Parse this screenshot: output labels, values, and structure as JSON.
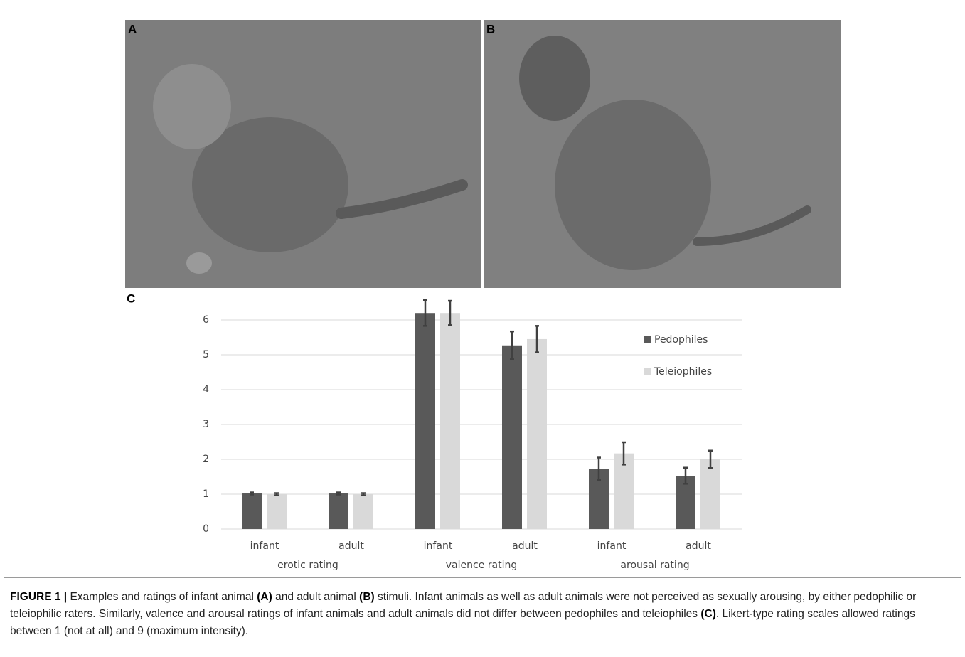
{
  "panels": [
    "A",
    "B",
    "C"
  ],
  "chart_data": {
    "type": "bar",
    "categories": [
      "infant",
      "adult",
      "infant",
      "adult",
      "infant",
      "adult"
    ],
    "groups": [
      "erotic rating",
      "valence rating",
      "arousal rating"
    ],
    "series": [
      {
        "name": "Pedophiles",
        "color": "#595959",
        "values": [
          1.02,
          1.02,
          6.2,
          5.27,
          1.73,
          1.53
        ],
        "errors": [
          0.03,
          0.03,
          0.37,
          0.4,
          0.32,
          0.23
        ]
      },
      {
        "name": "Teleiophiles",
        "color": "#d9d9d9",
        "values": [
          1.0,
          1.0,
          6.2,
          5.45,
          2.17,
          2.0
        ],
        "errors": [
          0.03,
          0.03,
          0.35,
          0.38,
          0.32,
          0.25
        ]
      }
    ],
    "ylim": [
      0,
      6.6
    ],
    "yticks": [
      0,
      1,
      2,
      3,
      4,
      5,
      6
    ],
    "grid": true,
    "legend": "upper right"
  },
  "caption": {
    "label": "FIGURE 1 |",
    "segments": [
      "Examples and ratings of infant animal",
      "(A)",
      "and adult animal",
      "(B)",
      "stimuli. Infant animals as well as adult animals were not perceived as sexually arousing, by either pedophilic or teleiophilic raters. Similarly, valence and arousal ratings of infant animals and adult animals did not differ between pedophiles and teleiophiles",
      "(C)",
      ". Likert-type rating scales allowed ratings between 1 (not at all) and 9 (maximum intensity)."
    ]
  }
}
